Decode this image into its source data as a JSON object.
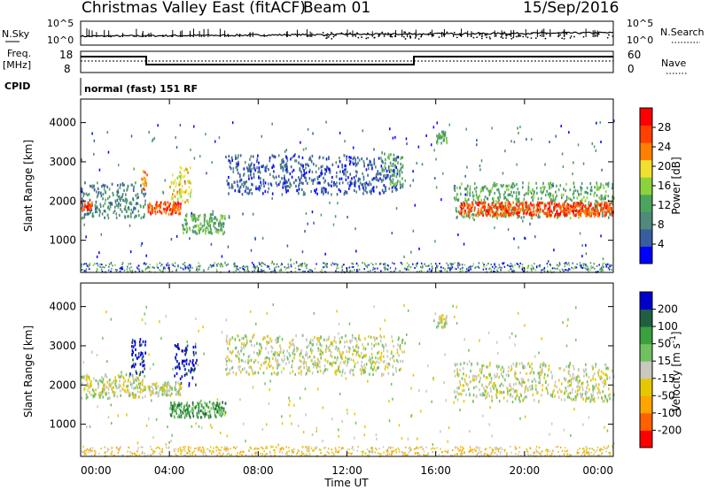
{
  "header": {
    "station": "Christmas Valley East (fitACF)",
    "beam": "Beam 01",
    "date": "15/Sep/2016"
  },
  "sky_panel": {
    "left_label": "N.Sky",
    "right_label": "N.Search",
    "left_ticks": [
      "10^5",
      "10^0"
    ],
    "right_ticks": [
      "10^5",
      "10^0"
    ]
  },
  "freq_panel": {
    "left_label_1": "Freq.",
    "left_label_2": "[MHz]",
    "left_ticks": [
      "18",
      "8"
    ],
    "right_label": "Nave",
    "right_ticks": [
      "60",
      "0"
    ]
  },
  "cpid": {
    "label": "CPID",
    "mode_text": "normal (fast) 151 RF"
  },
  "colors": {
    "power_scale": [
      "#0000ff",
      "#3a5ca0",
      "#4f8a7a",
      "#4ca55e",
      "#8cd23c",
      "#f0e030",
      "#ff8000",
      "#ff4000",
      "#ff0000"
    ],
    "velocity_scale": [
      "#ff0000",
      "#ff6000",
      "#ffa500",
      "#e6c800",
      "#c8c8c0",
      "#70c060",
      "#3aa040",
      "#206040",
      "#0000cc"
    ],
    "ground_scatter": "#b0b0a8"
  },
  "chart_data": [
    {
      "type": "heatmap",
      "name": "power",
      "ylabel": "Slant Range [km]",
      "yticks": [
        "1000",
        "2000",
        "3000",
        "4000"
      ],
      "colorbar_label": "Power [dB]",
      "colorbar_ticks": [
        "4",
        "8",
        "12",
        "16",
        "20",
        "24",
        "28"
      ],
      "ylim": [
        180,
        4600
      ],
      "xlim_hours": [
        0,
        24
      ],
      "features": [
        {
          "t0": 0.0,
          "t1": 2.9,
          "r0": 1600,
          "r1": 2500,
          "level": 2
        },
        {
          "t0": 0.0,
          "t1": 0.5,
          "r0": 1800,
          "r1": 2000,
          "level": 7
        },
        {
          "t0": 2.7,
          "t1": 3.0,
          "r0": 2300,
          "r1": 2800,
          "level": 6
        },
        {
          "t0": 3.0,
          "t1": 4.5,
          "r0": 1700,
          "r1": 2000,
          "level": 7
        },
        {
          "t0": 4.0,
          "t1": 5.0,
          "r0": 2000,
          "r1": 2900,
          "level": 5
        },
        {
          "t0": 4.5,
          "t1": 6.5,
          "r0": 1200,
          "r1": 1700,
          "level": 3
        },
        {
          "t0": 6.5,
          "t1": 14.5,
          "r0": 2200,
          "r1": 3200,
          "level": 1
        },
        {
          "t0": 13.5,
          "t1": 14.5,
          "r0": 2400,
          "r1": 3300,
          "level": 3
        },
        {
          "t0": 16.0,
          "t1": 16.5,
          "r0": 3500,
          "r1": 3800,
          "level": 3
        },
        {
          "t0": 16.8,
          "t1": 24.0,
          "r0": 1600,
          "r1": 2500,
          "level": 3
        },
        {
          "t0": 17.0,
          "t1": 24.0,
          "r0": 1650,
          "r1": 2000,
          "level": 7
        }
      ]
    },
    {
      "type": "heatmap",
      "name": "velocity",
      "ylabel": "Slant Range [km]",
      "yticks": [
        "1000",
        "2000",
        "3000",
        "4000"
      ],
      "colorbar_label": "Velocity [m s^-1]",
      "colorbar_ticks": [
        "-200",
        "-100",
        "-50",
        "-15",
        "15",
        "50",
        "100",
        "200"
      ],
      "ylim": [
        180,
        4600
      ],
      "xlim_hours": [
        0,
        24
      ],
      "xticks": [
        "00:00",
        "04:00",
        "08:00",
        "12:00",
        "16:00",
        "20:00",
        "00:00"
      ],
      "xlabel": "Time UT",
      "features": [
        {
          "t0": 0.0,
          "t1": 2.9,
          "r0": 1700,
          "r1": 2300,
          "level": 4
        },
        {
          "t0": 2.2,
          "t1": 2.9,
          "r0": 2300,
          "r1": 3200,
          "level": 8
        },
        {
          "t0": 3.0,
          "t1": 4.5,
          "r0": 1750,
          "r1": 2100,
          "level": 4
        },
        {
          "t0": 4.2,
          "t1": 5.2,
          "r0": 2000,
          "r1": 3100,
          "level": 8
        },
        {
          "t0": 4.0,
          "t1": 6.5,
          "r0": 1200,
          "r1": 1600,
          "level": 6
        },
        {
          "t0": 6.5,
          "t1": 14.5,
          "r0": 2300,
          "r1": 3300,
          "level": 4
        },
        {
          "t0": 16.0,
          "t1": 16.5,
          "r0": 3500,
          "r1": 3800,
          "level": 4
        },
        {
          "t0": 16.8,
          "t1": 24.0,
          "r0": 1600,
          "r1": 2600,
          "level": 4
        }
      ]
    }
  ],
  "axis": {
    "xticks": [
      "00:00",
      "04:00",
      "08:00",
      "12:00",
      "16:00",
      "20:00",
      "00:00"
    ],
    "xlabel": "Time UT"
  }
}
